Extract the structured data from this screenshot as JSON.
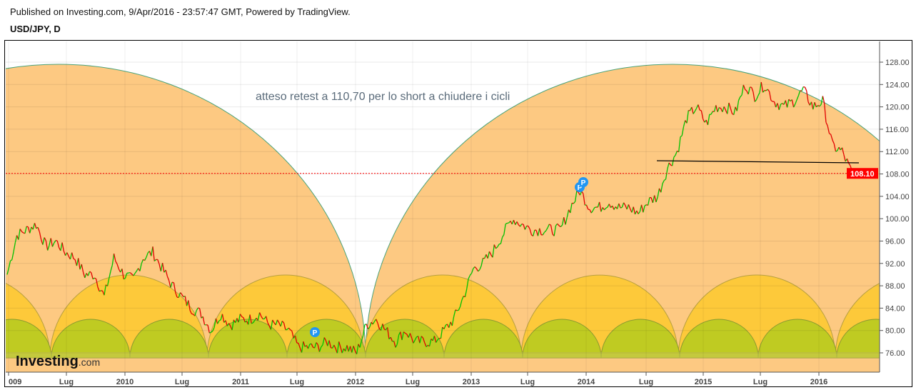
{
  "header": {
    "published": "Published on Investing.com, 9/Apr/2016 - 23:57:47 GMT, Powered by TradingView.",
    "symbol": "USD/JPY, D"
  },
  "logo": {
    "text": "Investing",
    "suffix": ".com"
  },
  "colors": {
    "up": "#00c000",
    "down": "#e00000",
    "arc_big": "#fdc982",
    "arc_mid": "#fdc93a",
    "arc_small": "#bfcb22",
    "price_label": "#ff0000"
  },
  "chart_data": {
    "type": "line",
    "title": "USD/JPY, D",
    "annotation": "atteso retest a 110,70 per lo short a chiudere i cicli",
    "last_price_label": "108.10",
    "last_price": 108.1,
    "resistance_level": 110.7,
    "ylim": [
      72,
      131
    ],
    "y_ticks": [
      "128.00",
      "124.00",
      "120.00",
      "116.00",
      "112.00",
      "108.00",
      "104.00",
      "100.00",
      "96.00",
      "92.00",
      "88.00",
      "84.00",
      "80.00",
      "76.00"
    ],
    "x_ticks": [
      "009",
      "Lug",
      "2010",
      "Lug",
      "2011",
      "Lug",
      "2012",
      "Lug",
      "2013",
      "Lug",
      "2014",
      "Lug",
      "2015",
      "Lug",
      "2016"
    ],
    "markers": [
      "P",
      "P",
      "P"
    ],
    "monthly_close_from_2009_01": [
      90,
      97,
      98,
      99,
      95,
      96,
      94,
      93,
      90,
      90,
      86,
      93,
      90,
      89,
      93,
      94,
      91,
      88,
      86,
      84,
      83,
      80,
      83,
      81,
      82,
      82,
      83,
      81,
      81,
      80,
      77,
      77,
      77,
      78,
      77,
      77,
      76,
      81,
      82,
      80,
      78,
      80,
      78,
      78,
      78,
      80,
      82,
      86,
      91,
      92,
      94,
      97,
      100,
      99,
      98,
      98,
      98,
      98,
      102,
      105,
      102,
      102,
      103,
      102,
      102,
      101,
      103,
      104,
      109,
      112,
      118,
      120,
      117,
      120,
      120,
      119,
      124,
      122,
      124,
      121,
      120,
      121,
      123,
      120,
      121,
      113,
      112,
      108.1
    ]
  }
}
